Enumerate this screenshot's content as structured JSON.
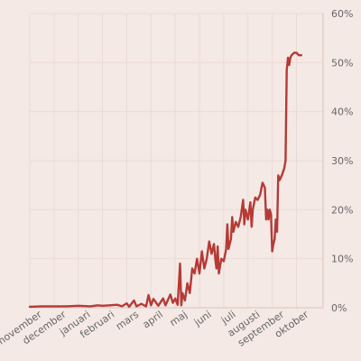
{
  "chart_data": {
    "type": "line",
    "title": "",
    "xlabel": "",
    "ylabel": "",
    "ylim": [
      0,
      60
    ],
    "y_ticks": [
      0,
      10,
      20,
      30,
      40,
      50,
      60
    ],
    "y_tick_labels": [
      "0%",
      "10%",
      "20%",
      "30%",
      "40%",
      "50%",
      "60%"
    ],
    "y_axis_side": "right",
    "grid": true,
    "xlim": [
      0,
      12.1
    ],
    "x_ticks": [
      {
        "label": "november",
        "pos": 0
      },
      {
        "label": "december",
        "pos": 1
      },
      {
        "label": "januari",
        "pos": 2
      },
      {
        "label": "februari",
        "pos": 3
      },
      {
        "label": "mars",
        "pos": 4
      },
      {
        "label": "april",
        "pos": 5
      },
      {
        "label": "maj",
        "pos": 6
      },
      {
        "label": "juni",
        "pos": 7
      },
      {
        "label": "juli",
        "pos": 8
      },
      {
        "label": "augusti",
        "pos": 9
      },
      {
        "label": "september",
        "pos": 10
      },
      {
        "label": "oktober",
        "pos": 11
      }
    ],
    "series": [
      {
        "color": "#b53a36",
        "points": [
          [
            0,
            0.2
          ],
          [
            0.5,
            0.3
          ],
          [
            1.0,
            0.3
          ],
          [
            1.5,
            0.3
          ],
          [
            2.0,
            0.4
          ],
          [
            2.5,
            0.3
          ],
          [
            2.8,
            0.5
          ],
          [
            3.0,
            0.4
          ],
          [
            3.3,
            0.5
          ],
          [
            3.6,
            0.6
          ],
          [
            3.8,
            0.3
          ],
          [
            4.0,
            0.9
          ],
          [
            4.1,
            0.2
          ],
          [
            4.3,
            1.5
          ],
          [
            4.4,
            0.3
          ],
          [
            4.6,
            0.8
          ],
          [
            4.8,
            0.3
          ],
          [
            4.9,
            2.6
          ],
          [
            5.0,
            0.5
          ],
          [
            5.1,
            1.8
          ],
          [
            5.3,
            0.4
          ],
          [
            5.5,
            1.9
          ],
          [
            5.6,
            0.5
          ],
          [
            5.8,
            2.7
          ],
          [
            5.9,
            1.0
          ],
          [
            6.0,
            1.9
          ],
          [
            6.1,
            0.6
          ],
          [
            6.2,
            9.0
          ],
          [
            6.25,
            0.5
          ],
          [
            6.3,
            3.0
          ],
          [
            6.4,
            1.5
          ],
          [
            6.5,
            5.0
          ],
          [
            6.6,
            3.0
          ],
          [
            6.7,
            8.0
          ],
          [
            6.8,
            7.0
          ],
          [
            6.9,
            10.0
          ],
          [
            7.0,
            7.0
          ],
          [
            7.1,
            11.5
          ],
          [
            7.2,
            8.0
          ],
          [
            7.3,
            10.0
          ],
          [
            7.4,
            13.5
          ],
          [
            7.5,
            11.0
          ],
          [
            7.6,
            13.0
          ],
          [
            7.65,
            10.0
          ],
          [
            7.7,
            8.0
          ],
          [
            7.75,
            12.5
          ],
          [
            7.8,
            7.0
          ],
          [
            7.9,
            10.0
          ],
          [
            8.0,
            9.5
          ],
          [
            8.1,
            12.0
          ],
          [
            8.15,
            17.0
          ],
          [
            8.2,
            12.0
          ],
          [
            8.3,
            14.0
          ],
          [
            8.35,
            18.5
          ],
          [
            8.4,
            15.5
          ],
          [
            8.5,
            17.5
          ],
          [
            8.6,
            16.5
          ],
          [
            8.7,
            18.5
          ],
          [
            8.8,
            22.0
          ],
          [
            8.85,
            17.0
          ],
          [
            8.9,
            20.0
          ],
          [
            9.0,
            18.0
          ],
          [
            9.1,
            21.5
          ],
          [
            9.15,
            16.5
          ],
          [
            9.2,
            20.0
          ],
          [
            9.3,
            22.5
          ],
          [
            9.4,
            22.0
          ],
          [
            9.5,
            23.0
          ],
          [
            9.6,
            25.5
          ],
          [
            9.7,
            24.5
          ],
          [
            9.75,
            18.0
          ],
          [
            9.8,
            20.0
          ],
          [
            9.85,
            18.0
          ],
          [
            9.9,
            20.0
          ],
          [
            9.95,
            19.0
          ],
          [
            10.0,
            11.5
          ],
          [
            10.05,
            13.0
          ],
          [
            10.1,
            14.0
          ],
          [
            10.15,
            18.0
          ],
          [
            10.2,
            15.5
          ],
          [
            10.25,
            27.0
          ],
          [
            10.3,
            26.0
          ],
          [
            10.4,
            27.0
          ],
          [
            10.5,
            28.5
          ],
          [
            10.55,
            30.0
          ],
          [
            10.6,
            48.5
          ],
          [
            10.65,
            51.0
          ],
          [
            10.7,
            49.5
          ],
          [
            10.75,
            51.0
          ],
          [
            10.8,
            51.5
          ],
          [
            10.9,
            52.0
          ],
          [
            11.0,
            52.0
          ],
          [
            11.1,
            51.5
          ],
          [
            11.2,
            51.5
          ]
        ]
      }
    ]
  }
}
